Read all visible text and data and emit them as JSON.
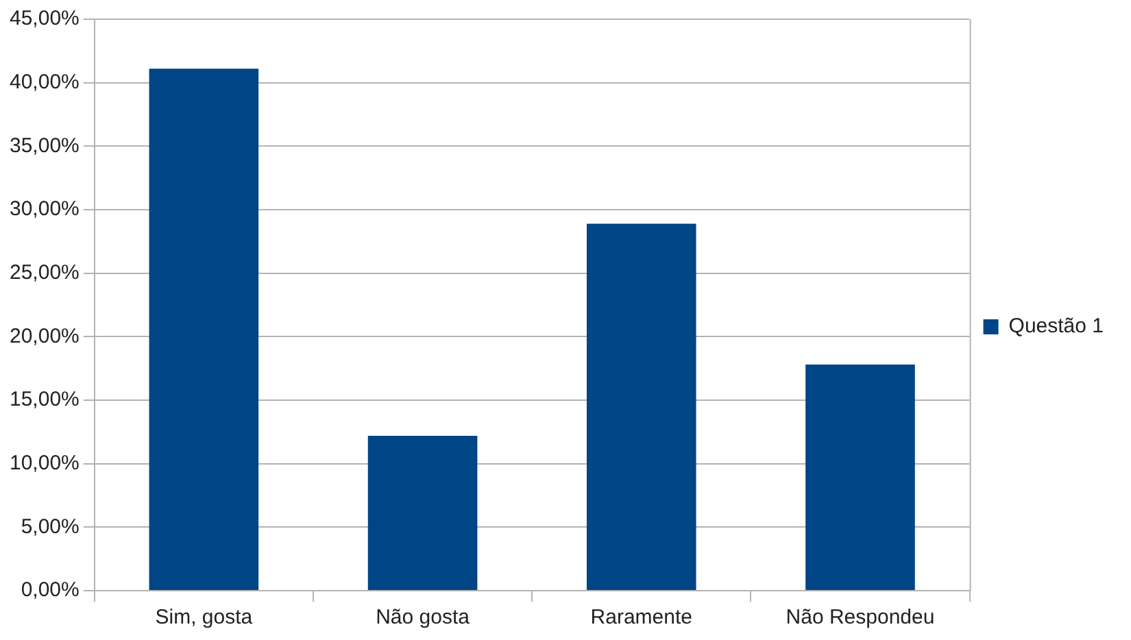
{
  "chart_data": {
    "type": "bar",
    "categories": [
      "Sim, gosta",
      "Não gosta",
      "Raramente",
      "Não Respondeu"
    ],
    "series": [
      {
        "name": "Questão 1",
        "color": "#004586",
        "values": [
          41.1,
          12.2,
          28.9,
          17.8
        ]
      }
    ],
    "ylim": [
      0,
      45
    ],
    "yticks": [
      {
        "value": 0,
        "label": "0,00%"
      },
      {
        "value": 5,
        "label": "5,00%"
      },
      {
        "value": 10,
        "label": "10,00%"
      },
      {
        "value": 15,
        "label": "15,00%"
      },
      {
        "value": 20,
        "label": "20,00%"
      },
      {
        "value": 25,
        "label": "25,00%"
      },
      {
        "value": 30,
        "label": "30,00%"
      },
      {
        "value": 35,
        "label": "35,00%"
      },
      {
        "value": 40,
        "label": "40,00%"
      },
      {
        "value": 45,
        "label": "45,00%"
      }
    ],
    "grid": "y",
    "legend": "right"
  }
}
